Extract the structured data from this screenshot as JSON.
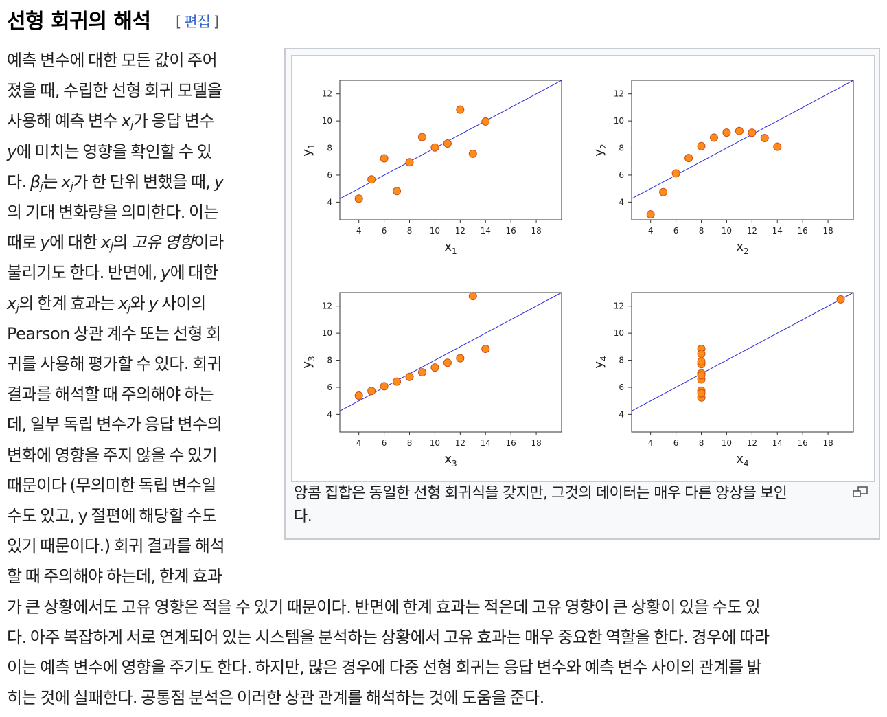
{
  "section": {
    "title": "선형 회귀의 해석",
    "edit_open": "[",
    "edit_label": "편집",
    "edit_close": "]"
  },
  "para": {
    "l1": "예측 변수에 대한 모든 값이 주어",
    "l2": "졌을 때, 수립한 선형 회귀 모델을",
    "l3a": "사용해 예측 변수 ",
    "l3_x": "x",
    "l3_j": "j",
    "l3b": "가 응답 변수",
    "l4_y": "y",
    "l4b": "에 미치는 영향을 확인할 수 있",
    "l5a": "다. ",
    "l5_beta": "β",
    "l5_j": "j",
    "l5b": "는 ",
    "l5_x": "x",
    "l5_j2": "j",
    "l5c": "가 한 단위 변했을 때, ",
    "l5_y": "y",
    "l6": "의 기대 변화량을 의미한다. 이는",
    "l7a": "때로 ",
    "l7_y": "y",
    "l7b": "에 대한 ",
    "l7_x": "x",
    "l7_j": "j",
    "l7c": "의 ",
    "l7_unique": "고유 영향",
    "l7d": "이라",
    "l8a": "불리기도 한다. 반면에, ",
    "l8_y": "y",
    "l8b": "에 대한",
    "l9_x": "x",
    "l9_j": "j",
    "l9a": "의 한계 효과는 ",
    "l9_x2": "x",
    "l9_j2": "j",
    "l9b": "와 ",
    "l9_y": "y",
    "l9c": " 사이의",
    "l10": "Pearson 상관 계수 또는 선형 회",
    "l11": "귀를 사용해 평가할 수 있다. 회귀",
    "l12": "결과를 해석할 때 주의해야 하는",
    "l13": "데, 일부 독립 변수가 응답 변수의",
    "l14": "변화에 영향을 주지 않을 수 있기",
    "l15": "때문이다 (무의미한 독립 변수일",
    "l16": "수도 있고, y 절편에 해당할 수도",
    "l17": "있기 때문이다.) 회귀 결과를 해석",
    "l18": "할 때 주의해야 하는데, 한계 효과",
    "l19": "가 큰 상황에서도 고유 영향은 적을 수 있기 때문이다. 반면에 한계 효과는 적은데 고유 영향이 큰 상황이 있을 수도 있",
    "l20": "다. 아주 복잡하게 서로 연계되어 있는 시스템을 분석하는 상황에서 고유 효과는 매우 중요한 역할을 한다. 경우에 따라",
    "l21": "이는 예측 변수에 영향을 주기도 한다. 하지만, 많은 경우에 다중 선형 회귀는 응답 변수와 예측 변수 사이의 관계를 밝",
    "l22": "히는 것에 실패한다. 공통점 분석은 이러한 상관 관계를 해석하는 것에 도움을 준다."
  },
  "figure": {
    "caption_l1": "앙콤 집합은 동일한 선형 회귀식을 갖지만, 그것의 데이터는 매우 다른 양상을 보인",
    "caption_l2": "다.",
    "magnify_icon": "magnify-clip-icon"
  },
  "chart_data": [
    {
      "type": "scatter",
      "xlabel": "x1",
      "ylabel": "y1",
      "xlim": [
        2.5,
        20
      ],
      "ylim": [
        2.7,
        13
      ],
      "xticks": [
        4,
        6,
        8,
        10,
        12,
        14,
        16,
        18
      ],
      "yticks": [
        4,
        6,
        8,
        10,
        12
      ],
      "x": [
        10,
        8,
        13,
        9,
        11,
        14,
        6,
        4,
        12,
        7,
        5
      ],
      "y": [
        8.04,
        6.95,
        7.58,
        8.81,
        8.33,
        9.96,
        7.24,
        4.26,
        10.84,
        4.82,
        5.68
      ],
      "fit": {
        "intercept": 3.0,
        "slope": 0.5
      }
    },
    {
      "type": "scatter",
      "xlabel": "x2",
      "ylabel": "y2",
      "xlim": [
        2.5,
        20
      ],
      "ylim": [
        2.7,
        13
      ],
      "xticks": [
        4,
        6,
        8,
        10,
        12,
        14,
        16,
        18
      ],
      "yticks": [
        4,
        6,
        8,
        10,
        12
      ],
      "x": [
        10,
        8,
        13,
        9,
        11,
        14,
        6,
        4,
        12,
        7,
        5
      ],
      "y": [
        9.14,
        8.14,
        8.74,
        8.77,
        9.26,
        8.1,
        6.13,
        3.1,
        9.13,
        7.26,
        4.74
      ],
      "fit": {
        "intercept": 3.0,
        "slope": 0.5
      }
    },
    {
      "type": "scatter",
      "xlabel": "x3",
      "ylabel": "y3",
      "xlim": [
        2.5,
        20
      ],
      "ylim": [
        2.7,
        13
      ],
      "xticks": [
        4,
        6,
        8,
        10,
        12,
        14,
        16,
        18
      ],
      "yticks": [
        4,
        6,
        8,
        10,
        12
      ],
      "x": [
        10,
        8,
        13,
        9,
        11,
        14,
        6,
        4,
        12,
        7,
        5
      ],
      "y": [
        7.46,
        6.77,
        12.74,
        7.11,
        7.81,
        8.84,
        6.08,
        5.39,
        8.15,
        6.42,
        5.73
      ],
      "fit": {
        "intercept": 3.0,
        "slope": 0.5
      }
    },
    {
      "type": "scatter",
      "xlabel": "x4",
      "ylabel": "y4",
      "xlim": [
        2.5,
        20
      ],
      "ylim": [
        2.7,
        13
      ],
      "xticks": [
        4,
        6,
        8,
        10,
        12,
        14,
        16,
        18
      ],
      "yticks": [
        4,
        6,
        8,
        10,
        12
      ],
      "x": [
        8,
        8,
        8,
        8,
        8,
        8,
        8,
        19,
        8,
        8,
        8
      ],
      "y": [
        6.58,
        5.76,
        7.71,
        8.84,
        8.47,
        7.04,
        5.25,
        12.5,
        5.56,
        7.91,
        6.89
      ],
      "fit": {
        "intercept": 3.0,
        "slope": 0.5
      }
    }
  ],
  "colors": {
    "point_fill": "#ff8c1a",
    "point_stroke": "#c8501a",
    "fit_line": "#2b2bd6",
    "link": "#3366cc"
  }
}
